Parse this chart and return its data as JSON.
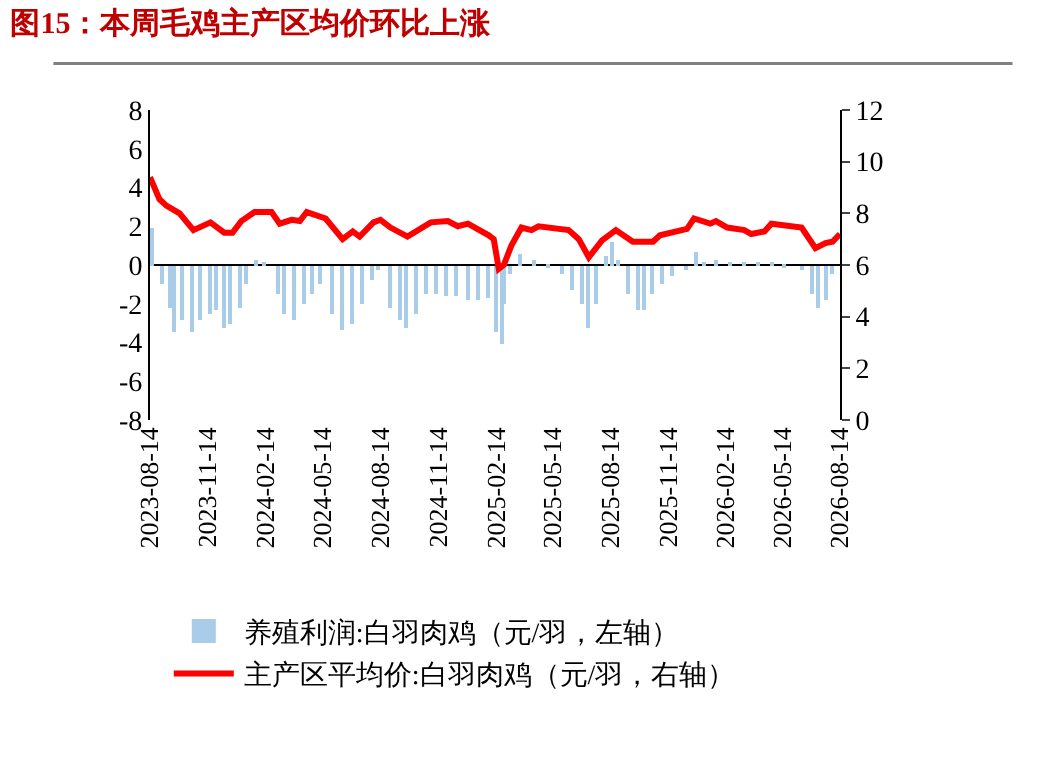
{
  "chart_data": {
    "type": "bar",
    "title": "图15：本周毛鸡主产区均价环比上涨",
    "xlim": [
      "2023-08-14",
      "2026-08-14"
    ],
    "xticks": [
      "2023-08-14",
      "2023-11-14",
      "2024-02-14",
      "2024-05-14",
      "2024-08-14",
      "2024-11-14",
      "2025-02-14",
      "2025-05-14",
      "2025-08-14",
      "2025-11-14",
      "2026-02-14",
      "2026-05-14",
      "2026-08-14"
    ],
    "ylim": [
      -8,
      8
    ],
    "yticks": [
      -8,
      -6,
      -4,
      -2,
      0,
      2,
      4,
      6,
      8
    ],
    "y2lim": [
      0,
      12
    ],
    "y2ticks": [
      0,
      2,
      4,
      6,
      8,
      10,
      12
    ],
    "legend": "bottom",
    "series": [
      {
        "name": "养殖利润:白羽肉鸡（元/羽，左轴）",
        "axis": "y",
        "color": "#a9cde9",
        "x": [
          "2023-08-17",
          "2023-09-03",
          "2023-09-14",
          "2023-09-22",
          "2023-10-05",
          "2023-10-19",
          "2023-11-01",
          "2023-11-17",
          "2023-11-28",
          "2023-12-10",
          "2023-12-21",
          "2024-01-04",
          "2024-01-15",
          "2024-01-31",
          "2024-02-11",
          "2024-03-04",
          "2024-03-14",
          "2024-03-30",
          "2024-04-15",
          "2024-04-29",
          "2024-05-12",
          "2024-05-28",
          "2024-06-13",
          "2024-06-29",
          "2024-07-15",
          "2024-08-01",
          "2024-08-12",
          "2024-08-30",
          "2024-09-13",
          "2024-09-24",
          "2024-10-10",
          "2024-10-26",
          "2024-11-11",
          "2024-11-28",
          "2024-12-14",
          "2024-12-30",
          "2025-01-16",
          "2025-01-31",
          "2025-02-13",
          "2025-02-22",
          "2025-02-27",
          "2025-03-09",
          "2025-03-25",
          "2025-04-16",
          "2025-05-07",
          "2025-05-29",
          "2025-06-14",
          "2025-06-30",
          "2025-07-11",
          "2025-07-22",
          "2025-08-07",
          "2025-08-17",
          "2025-08-28",
          "2025-09-13",
          "2025-09-26",
          "2025-10-07",
          "2025-10-21",
          "2025-11-06",
          "2025-11-22",
          "2025-12-14",
          "2025-12-28",
          "2026-01-10",
          "2026-01-31",
          "2026-02-21",
          "2026-03-15",
          "2026-04-05",
          "2026-04-27",
          "2026-05-18",
          "2026-06-14",
          "2026-06-30",
          "2026-07-09",
          "2026-07-22",
          "2026-08-02"
        ],
        "values": [
          1.9,
          -1.0,
          -2.2,
          -3.5,
          -2.8,
          -3.5,
          -2.8,
          -2.5,
          -2.3,
          -3.2,
          -3.0,
          -2.2,
          -1.0,
          0.3,
          0.2,
          -1.5,
          -2.5,
          -2.8,
          -2.0,
          -1.5,
          -1.0,
          -2.5,
          -3.4,
          -3.0,
          -2.0,
          -0.8,
          -0.3,
          -2.2,
          -2.8,
          -3.2,
          -2.5,
          -1.5,
          -1.5,
          -1.6,
          -1.6,
          -1.8,
          -1.8,
          -1.7,
          -3.5,
          -4.1,
          -2.0,
          -0.5,
          0.6,
          0.3,
          -0.1,
          -0.5,
          -1.3,
          -2.0,
          -3.3,
          -2.0,
          0.5,
          1.2,
          0.3,
          -1.5,
          -2.3,
          -2.3,
          -1.5,
          -1.0,
          -0.6,
          -0.3,
          0.7,
          0.2,
          0.3,
          0.2,
          0.1,
          0.2,
          0.1,
          -0.1,
          -0.3,
          -1.5,
          -2.2,
          -1.8,
          -0.5
        ]
      },
      {
        "name": "主产区平均价:白羽肉鸡（元/羽，右轴）",
        "type": "line",
        "axis": "y2",
        "color": "#ff0000",
        "marker": "none",
        "line_style": "solid",
        "x": [
          "2023-08-14",
          "2023-08-29",
          "2023-09-09",
          "2023-09-30",
          "2023-10-22",
          "2023-11-18",
          "2023-12-10",
          "2023-12-23",
          "2024-01-06",
          "2024-01-27",
          "2024-02-23",
          "2024-03-07",
          "2024-03-26",
          "2024-04-08",
          "2024-04-19",
          "2024-05-19",
          "2024-06-15",
          "2024-07-01",
          "2024-07-12",
          "2024-08-03",
          "2024-08-14",
          "2024-08-30",
          "2024-09-26",
          "2024-11-02",
          "2024-11-29",
          "2024-12-15",
          "2024-12-31",
          "2025-02-02",
          "2025-02-10",
          "2025-02-18",
          "2025-02-26",
          "2025-03-10",
          "2025-03-26",
          "2025-04-11",
          "2025-04-22",
          "2025-06-09",
          "2025-06-25",
          "2025-07-11",
          "2025-08-01",
          "2025-08-23",
          "2025-09-19",
          "2025-10-21",
          "2025-11-01",
          "2025-12-14",
          "2025-12-25",
          "2026-01-20",
          "2026-01-29",
          "2026-02-16",
          "2026-03-15",
          "2026-03-26",
          "2026-04-16",
          "2026-04-27",
          "2026-06-14",
          "2026-07-06",
          "2026-07-22",
          "2026-08-02",
          "2026-08-14"
        ],
        "values": [
          9.4,
          8.55,
          8.3,
          8.0,
          7.35,
          7.65,
          7.25,
          7.25,
          7.7,
          8.05,
          8.05,
          7.6,
          7.75,
          7.7,
          8.05,
          7.8,
          7.0,
          7.3,
          7.1,
          7.65,
          7.75,
          7.45,
          7.1,
          7.65,
          7.7,
          7.5,
          7.6,
          7.15,
          7.0,
          5.85,
          6.0,
          6.75,
          7.45,
          7.35,
          7.5,
          7.35,
          7.0,
          6.3,
          6.95,
          7.35,
          6.9,
          6.9,
          7.15,
          7.4,
          7.8,
          7.6,
          7.7,
          7.45,
          7.35,
          7.2,
          7.3,
          7.6,
          7.45,
          6.65,
          6.85,
          6.9,
          7.2
        ]
      }
    ]
  }
}
